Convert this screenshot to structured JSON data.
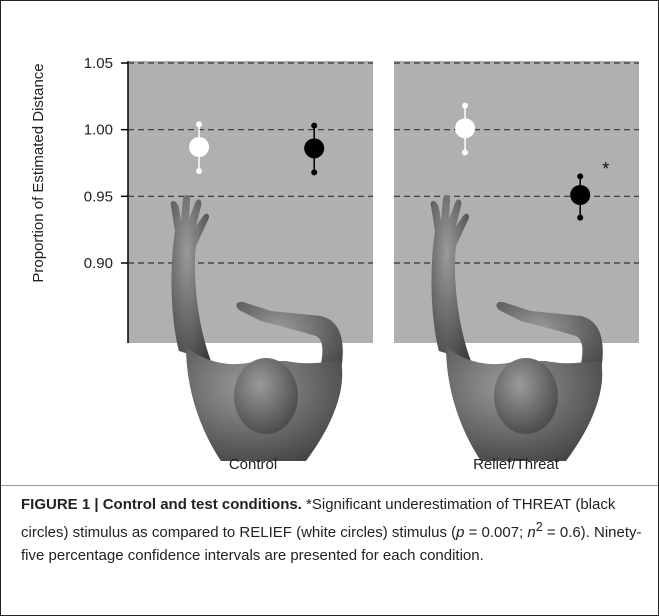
{
  "chart_data": [
    {
      "type": "errorbar",
      "ylabel": "Proportion of Estimated Distance",
      "xlabel": "Control",
      "ylim": [
        0.84,
        1.05
      ],
      "yticks": [
        1.05,
        {
          "value": 1,
          "label": "1.00"
        },
        0.95,
        {
          "value": 0.9,
          "label": "0.90"
        }
      ],
      "grid": true,
      "values": [
        0.987,
        0.986
      ],
      "ci_low": [
        0.969,
        0.968
      ],
      "ci_high": [
        1.004,
        1.003
      ],
      "colors": [
        "#ffffff",
        "#000000"
      ]
    },
    {
      "type": "errorbar",
      "xlabel": "Relief/Threat",
      "values": [
        1.001,
        0.951
      ],
      "ci_low": [
        0.983,
        0.934
      ],
      "ci_high": [
        1.018,
        0.965
      ],
      "colors": [
        "#ffffff",
        "#000000"
      ],
      "annotations": [
        {
          "text": "*"
        }
      ]
    }
  ],
  "caption": {
    "label": "FIGURE 1 | Control and test conditions.",
    "text_1": " *Significant underestimation of THREAT (black circles) stimulus as compared to RELIEF (white circles) stimulus (",
    "p": "p",
    "text_2": " = 0.007; ",
    "n": "n",
    "sup": "2",
    "text_3": " = 0.6). Ninety-five percentage confidence intervals are presented for each condition."
  }
}
